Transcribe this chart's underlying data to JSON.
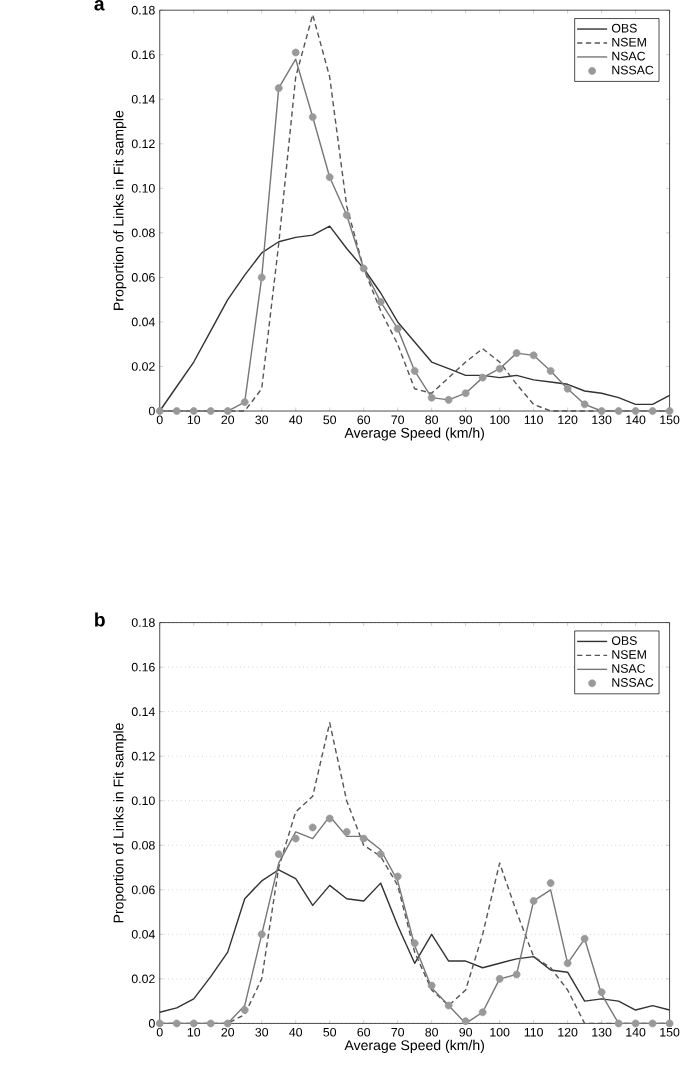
{
  "chart_data": [
    {
      "type": "line",
      "title": "a",
      "xlabel": "Average Speed (km/h)",
      "ylabel": "Proportion of Links in Fit sample",
      "x": [
        0,
        5,
        10,
        15,
        20,
        25,
        30,
        35,
        40,
        45,
        50,
        55,
        60,
        65,
        70,
        75,
        80,
        85,
        90,
        95,
        100,
        105,
        110,
        115,
        120,
        125,
        130,
        135,
        140,
        145,
        150
      ],
      "xlim": [
        0,
        150
      ],
      "xticks": [
        0,
        10,
        20,
        30,
        40,
        50,
        60,
        70,
        80,
        90,
        100,
        110,
        120,
        130,
        140,
        150
      ],
      "ylim": [
        0,
        0.18
      ],
      "yticks": [
        0,
        0.02,
        0.04,
        0.06,
        0.08,
        {
          "value": 0.1,
          "label": "0.10"
        },
        0.12,
        0.14,
        0.16,
        0.18
      ],
      "grid": false,
      "legend": "top right",
      "series": [
        {
          "name": "OBS",
          "color": "#333333",
          "line_style": "solid",
          "marker": "none",
          "values": [
            0,
            0.011,
            0.022,
            0.036,
            0.05,
            0.061,
            0.071,
            0.076,
            0.078,
            0.079,
            0.083,
            0.073,
            0.064,
            0.053,
            0.04,
            0.031,
            0.022,
            0.019,
            0.016,
            0.016,
            0.015,
            0.016,
            0.014,
            0.013,
            0.012,
            0.009,
            0.008,
            0.006,
            0.003,
            0.003,
            0.007
          ]
        },
        {
          "name": "NSEM",
          "color": "#555555",
          "line_style": "dashed",
          "marker": "none",
          "values": [
            0,
            0,
            0,
            0,
            0,
            0,
            0.01,
            0.075,
            0.15,
            0.178,
            0.15,
            0.092,
            0.064,
            0.045,
            0.03,
            0.01,
            0.008,
            0.015,
            0.022,
            0.028,
            0.022,
            0.012,
            0.003,
            0,
            0,
            0,
            0,
            0,
            0,
            0,
            0
          ]
        },
        {
          "name": "NSAC",
          "color": "#777777",
          "line_style": "solid",
          "marker": "none",
          "values": [
            0,
            0,
            0,
            0,
            0,
            0.004,
            0.06,
            0.145,
            0.158,
            0.132,
            0.105,
            0.088,
            0.064,
            0.049,
            0.037,
            0.018,
            0.006,
            0.005,
            0.008,
            0.015,
            0.019,
            0.026,
            0.025,
            0.018,
            0.01,
            0.003,
            0,
            0,
            0,
            0,
            0
          ]
        },
        {
          "name": "NSSAC",
          "type": "scatter",
          "color": "#999999",
          "marker": "circle",
          "values": [
            0,
            0,
            0,
            0,
            0,
            0.004,
            0.06,
            0.145,
            0.161,
            0.132,
            0.105,
            0.088,
            0.064,
            0.049,
            0.037,
            0.018,
            0.006,
            0.005,
            0.008,
            0.015,
            0.019,
            0.026,
            0.025,
            0.018,
            0.01,
            0.003,
            0,
            0,
            0,
            0,
            0
          ]
        }
      ]
    },
    {
      "type": "line",
      "title": "b",
      "xlabel": "Average Speed (km/h)",
      "ylabel": "Proportion of Links in Fit sample",
      "x": [
        0,
        5,
        10,
        15,
        20,
        25,
        30,
        35,
        40,
        45,
        50,
        55,
        60,
        65,
        70,
        75,
        80,
        85,
        90,
        95,
        100,
        105,
        110,
        115,
        120,
        125,
        130,
        135,
        140,
        145,
        150
      ],
      "xlim": [
        0,
        150
      ],
      "xticks": [
        0,
        10,
        20,
        30,
        40,
        50,
        60,
        70,
        80,
        90,
        100,
        110,
        120,
        130,
        140,
        150
      ],
      "ylim": [
        0,
        0.18
      ],
      "yticks": [
        0,
        0.02,
        0.04,
        0.06,
        0.08,
        {
          "value": 0.1,
          "label": "0.10"
        },
        0.12,
        0.14,
        0.16,
        0.18
      ],
      "grid": "y",
      "legend": "top right",
      "series": [
        {
          "name": "OBS",
          "color": "#333333",
          "line_style": "solid",
          "marker": "none",
          "values": [
            0.005,
            0.007,
            0.011,
            0.021,
            0.032,
            0.056,
            0.064,
            0.069,
            0.065,
            0.053,
            0.062,
            0.056,
            0.055,
            0.063,
            0.044,
            0.027,
            0.04,
            0.028,
            0.028,
            0.025,
            0.027,
            0.029,
            0.03,
            0.024,
            0.023,
            0.01,
            0.011,
            0.01,
            0.006,
            0.008,
            0.006
          ]
        },
        {
          "name": "NSEM",
          "color": "#555555",
          "line_style": "dashed",
          "marker": "none",
          "values": [
            0,
            0,
            0,
            0,
            0,
            0.004,
            0.02,
            0.07,
            0.095,
            0.102,
            0.135,
            0.1,
            0.08,
            0.075,
            0.062,
            0.032,
            0.015,
            0.008,
            0.015,
            0.04,
            0.072,
            0.05,
            0.03,
            0.025,
            0.015,
            0,
            0,
            0,
            0,
            0,
            0
          ]
        },
        {
          "name": "NSAC",
          "color": "#777777",
          "line_style": "solid",
          "marker": "none",
          "values": [
            0,
            0,
            0,
            0,
            0,
            0.008,
            0.04,
            0.072,
            0.086,
            0.083,
            0.093,
            0.084,
            0.084,
            0.078,
            0.064,
            0.035,
            0.016,
            0.008,
            0,
            0.005,
            0.02,
            0.022,
            0.055,
            0.06,
            0.027,
            0.038,
            0.013,
            0,
            0,
            0,
            0
          ]
        },
        {
          "name": "NSSAC",
          "type": "scatter",
          "color": "#999999",
          "marker": "circle",
          "values": [
            0,
            0,
            0,
            0,
            0,
            0.006,
            0.04,
            0.076,
            0.083,
            0.088,
            0.092,
            0.086,
            0.083,
            0.076,
            0.066,
            0.036,
            0.017,
            0.008,
            0.001,
            0.005,
            0.02,
            0.022,
            0.055,
            0.063,
            0.027,
            0.038,
            0.014,
            0,
            0,
            0,
            0
          ]
        }
      ]
    }
  ]
}
